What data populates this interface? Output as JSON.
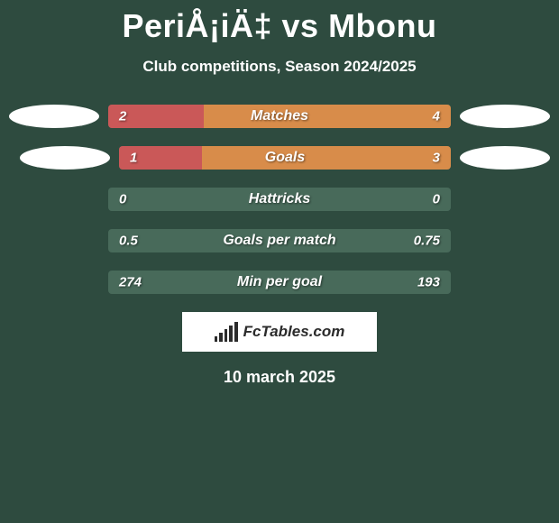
{
  "background_color": "#2e4b3f",
  "title": "PeriÅ¡iÄ‡ vs Mbonu",
  "title_color": "#ffffff",
  "title_fontsize": 36,
  "subtitle": "Club competitions, Season 2024/2025",
  "subtitle_color": "#ffffff",
  "subtitle_fontsize": 17,
  "bar_bg_color": "#486a5a",
  "left_fill_color": "#ca5858",
  "right_fill_color": "#d88c4a",
  "badge_color": "#ffffff",
  "text_color": "#ffffff",
  "logo_box_bg": "#ffffff",
  "logo_text": "FcTables.com",
  "logo_color": "#2b2b2b",
  "date_text": "10 march 2025",
  "rows": [
    {
      "label": "Matches",
      "left_value": "2",
      "right_value": "4",
      "left_pct": 28,
      "right_pct": 72,
      "show_left_badge": true,
      "show_right_badge": true
    },
    {
      "label": "Goals",
      "left_value": "1",
      "right_value": "3",
      "left_pct": 25,
      "right_pct": 75,
      "show_left_badge": true,
      "show_right_badge": true
    },
    {
      "label": "Hattricks",
      "left_value": "0",
      "right_value": "0",
      "left_pct": 0,
      "right_pct": 0,
      "show_left_badge": false,
      "show_right_badge": false
    },
    {
      "label": "Goals per match",
      "left_value": "0.5",
      "right_value": "0.75",
      "left_pct": 0,
      "right_pct": 0,
      "show_left_badge": false,
      "show_right_badge": false
    },
    {
      "label": "Min per goal",
      "left_value": "274",
      "right_value": "193",
      "left_pct": 0,
      "right_pct": 0,
      "show_left_badge": false,
      "show_right_badge": false
    }
  ]
}
